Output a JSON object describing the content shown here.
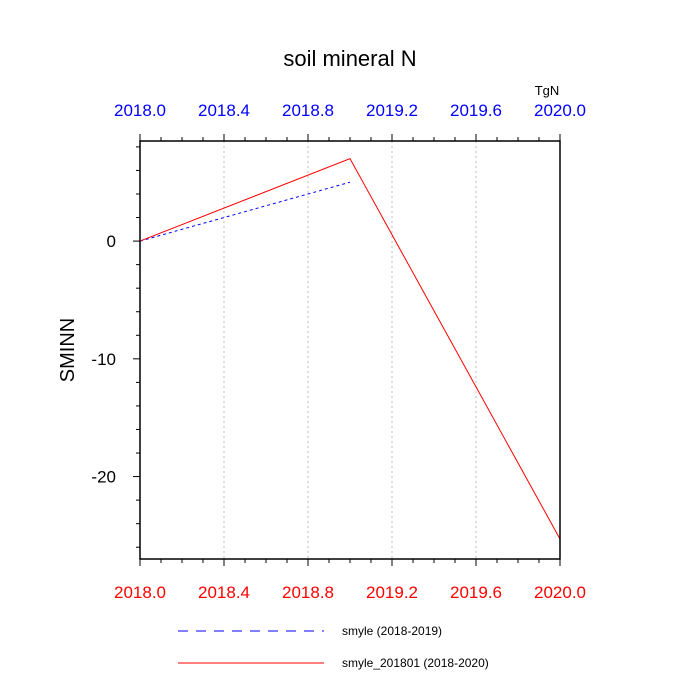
{
  "chart_data": {
    "type": "line",
    "title": "soil mineral N",
    "ylabel": "SMINN",
    "units": "TgN",
    "xlim": [
      2018.0,
      2020.0
    ],
    "ylim": [
      -27,
      8.5
    ],
    "x_ticks": [
      2018.0,
      2018.4,
      2018.8,
      2019.2,
      2019.6,
      2020.0
    ],
    "x_tick_labels": [
      "2018.0",
      "2018.4",
      "2018.8",
      "2019.2",
      "2019.6",
      "2020.0"
    ],
    "y_ticks": [
      0,
      -10,
      -20
    ],
    "y_tick_labels": [
      "0",
      "-10",
      "-20"
    ],
    "y_minor_step": 2,
    "x_grid": true,
    "top_axis_color": "#0000ff",
    "bottom_axis_color": "#ff0000",
    "series": [
      {
        "name": "smyle (2018-2019)",
        "color": "#0000ff",
        "dash": "dashed",
        "x": [
          2018.0,
          2019.0
        ],
        "y": [
          0,
          5
        ]
      },
      {
        "name": "smyle_201801 (2018-2020)",
        "color": "#ff0000",
        "dash": "solid",
        "x": [
          2018.0,
          2019.0,
          2020.0
        ],
        "y": [
          0,
          7,
          -25.3
        ]
      }
    ]
  }
}
